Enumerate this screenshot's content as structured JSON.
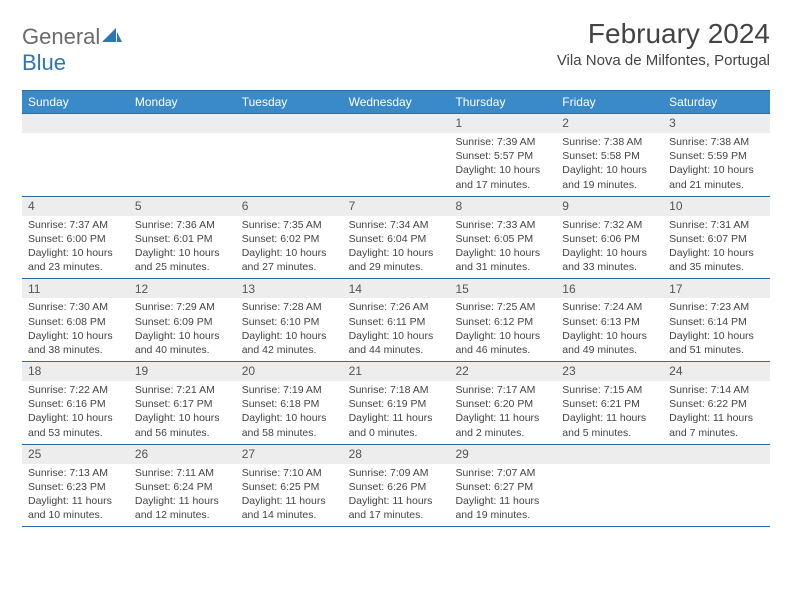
{
  "logo": {
    "text_a": "General",
    "text_b": "Blue"
  },
  "header": {
    "title": "February 2024",
    "location": "Vila Nova de Milfontes, Portugal"
  },
  "colors": {
    "header_bg": "#3a8ac9",
    "header_border": "#2e6da4",
    "daynum_bg": "#ededed",
    "text": "#444444",
    "logo_gray": "#6b6b6b",
    "logo_blue": "#2e75b6"
  },
  "weekdays": [
    "Sunday",
    "Monday",
    "Tuesday",
    "Wednesday",
    "Thursday",
    "Friday",
    "Saturday"
  ],
  "weeks": [
    [
      {
        "empty": true
      },
      {
        "empty": true
      },
      {
        "empty": true
      },
      {
        "empty": true
      },
      {
        "day": "1",
        "sunrise": "Sunrise: 7:39 AM",
        "sunset": "Sunset: 5:57 PM",
        "daylight": "Daylight: 10 hours and 17 minutes."
      },
      {
        "day": "2",
        "sunrise": "Sunrise: 7:38 AM",
        "sunset": "Sunset: 5:58 PM",
        "daylight": "Daylight: 10 hours and 19 minutes."
      },
      {
        "day": "3",
        "sunrise": "Sunrise: 7:38 AM",
        "sunset": "Sunset: 5:59 PM",
        "daylight": "Daylight: 10 hours and 21 minutes."
      }
    ],
    [
      {
        "day": "4",
        "sunrise": "Sunrise: 7:37 AM",
        "sunset": "Sunset: 6:00 PM",
        "daylight": "Daylight: 10 hours and 23 minutes."
      },
      {
        "day": "5",
        "sunrise": "Sunrise: 7:36 AM",
        "sunset": "Sunset: 6:01 PM",
        "daylight": "Daylight: 10 hours and 25 minutes."
      },
      {
        "day": "6",
        "sunrise": "Sunrise: 7:35 AM",
        "sunset": "Sunset: 6:02 PM",
        "daylight": "Daylight: 10 hours and 27 minutes."
      },
      {
        "day": "7",
        "sunrise": "Sunrise: 7:34 AM",
        "sunset": "Sunset: 6:04 PM",
        "daylight": "Daylight: 10 hours and 29 minutes."
      },
      {
        "day": "8",
        "sunrise": "Sunrise: 7:33 AM",
        "sunset": "Sunset: 6:05 PM",
        "daylight": "Daylight: 10 hours and 31 minutes."
      },
      {
        "day": "9",
        "sunrise": "Sunrise: 7:32 AM",
        "sunset": "Sunset: 6:06 PM",
        "daylight": "Daylight: 10 hours and 33 minutes."
      },
      {
        "day": "10",
        "sunrise": "Sunrise: 7:31 AM",
        "sunset": "Sunset: 6:07 PM",
        "daylight": "Daylight: 10 hours and 35 minutes."
      }
    ],
    [
      {
        "day": "11",
        "sunrise": "Sunrise: 7:30 AM",
        "sunset": "Sunset: 6:08 PM",
        "daylight": "Daylight: 10 hours and 38 minutes."
      },
      {
        "day": "12",
        "sunrise": "Sunrise: 7:29 AM",
        "sunset": "Sunset: 6:09 PM",
        "daylight": "Daylight: 10 hours and 40 minutes."
      },
      {
        "day": "13",
        "sunrise": "Sunrise: 7:28 AM",
        "sunset": "Sunset: 6:10 PM",
        "daylight": "Daylight: 10 hours and 42 minutes."
      },
      {
        "day": "14",
        "sunrise": "Sunrise: 7:26 AM",
        "sunset": "Sunset: 6:11 PM",
        "daylight": "Daylight: 10 hours and 44 minutes."
      },
      {
        "day": "15",
        "sunrise": "Sunrise: 7:25 AM",
        "sunset": "Sunset: 6:12 PM",
        "daylight": "Daylight: 10 hours and 46 minutes."
      },
      {
        "day": "16",
        "sunrise": "Sunrise: 7:24 AM",
        "sunset": "Sunset: 6:13 PM",
        "daylight": "Daylight: 10 hours and 49 minutes."
      },
      {
        "day": "17",
        "sunrise": "Sunrise: 7:23 AM",
        "sunset": "Sunset: 6:14 PM",
        "daylight": "Daylight: 10 hours and 51 minutes."
      }
    ],
    [
      {
        "day": "18",
        "sunrise": "Sunrise: 7:22 AM",
        "sunset": "Sunset: 6:16 PM",
        "daylight": "Daylight: 10 hours and 53 minutes."
      },
      {
        "day": "19",
        "sunrise": "Sunrise: 7:21 AM",
        "sunset": "Sunset: 6:17 PM",
        "daylight": "Daylight: 10 hours and 56 minutes."
      },
      {
        "day": "20",
        "sunrise": "Sunrise: 7:19 AM",
        "sunset": "Sunset: 6:18 PM",
        "daylight": "Daylight: 10 hours and 58 minutes."
      },
      {
        "day": "21",
        "sunrise": "Sunrise: 7:18 AM",
        "sunset": "Sunset: 6:19 PM",
        "daylight": "Daylight: 11 hours and 0 minutes."
      },
      {
        "day": "22",
        "sunrise": "Sunrise: 7:17 AM",
        "sunset": "Sunset: 6:20 PM",
        "daylight": "Daylight: 11 hours and 2 minutes."
      },
      {
        "day": "23",
        "sunrise": "Sunrise: 7:15 AM",
        "sunset": "Sunset: 6:21 PM",
        "daylight": "Daylight: 11 hours and 5 minutes."
      },
      {
        "day": "24",
        "sunrise": "Sunrise: 7:14 AM",
        "sunset": "Sunset: 6:22 PM",
        "daylight": "Daylight: 11 hours and 7 minutes."
      }
    ],
    [
      {
        "day": "25",
        "sunrise": "Sunrise: 7:13 AM",
        "sunset": "Sunset: 6:23 PM",
        "daylight": "Daylight: 11 hours and 10 minutes."
      },
      {
        "day": "26",
        "sunrise": "Sunrise: 7:11 AM",
        "sunset": "Sunset: 6:24 PM",
        "daylight": "Daylight: 11 hours and 12 minutes."
      },
      {
        "day": "27",
        "sunrise": "Sunrise: 7:10 AM",
        "sunset": "Sunset: 6:25 PM",
        "daylight": "Daylight: 11 hours and 14 minutes."
      },
      {
        "day": "28",
        "sunrise": "Sunrise: 7:09 AM",
        "sunset": "Sunset: 6:26 PM",
        "daylight": "Daylight: 11 hours and 17 minutes."
      },
      {
        "day": "29",
        "sunrise": "Sunrise: 7:07 AM",
        "sunset": "Sunset: 6:27 PM",
        "daylight": "Daylight: 11 hours and 19 minutes."
      },
      {
        "empty": true
      },
      {
        "empty": true
      }
    ]
  ]
}
